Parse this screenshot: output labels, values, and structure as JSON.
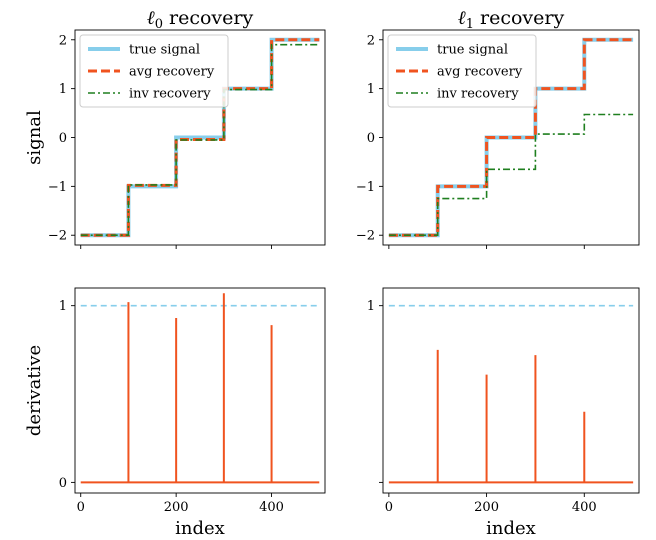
{
  "chart_data": [
    {
      "type": "line",
      "panel": "top-left",
      "title_prefix": "ℓ",
      "title_sub": "0",
      "title_suffix": " recovery",
      "ylabel": "signal",
      "xlabel": "",
      "xlim": [
        -12,
        512
      ],
      "ylim": [
        -2.2,
        2.2
      ],
      "xticks": [
        0,
        200,
        400
      ],
      "xtick_labels_visible": false,
      "yticks": [
        -2,
        -1,
        0,
        1,
        2
      ],
      "ytick_labels": [
        "−2",
        "−1",
        "0",
        "1",
        "2"
      ],
      "legend": "upper-left",
      "series": [
        {
          "name": "true signal",
          "color": "#87ceeb",
          "style": "solid",
          "width": 4,
          "x": [
            0,
            100,
            100,
            200,
            200,
            300,
            300,
            400,
            400,
            500
          ],
          "y": [
            -2,
            -2,
            -1,
            -1,
            0,
            0,
            1,
            1,
            2,
            2
          ]
        },
        {
          "name": "avg recovery",
          "color": "#f0531f",
          "style": "dashed",
          "width": 3,
          "x": [
            0,
            100,
            100,
            200,
            200,
            300,
            300,
            400,
            400,
            500
          ],
          "y": [
            -2,
            -2,
            -0.98,
            -0.98,
            -0.04,
            -0.04,
            1.0,
            1.0,
            2.0,
            2.0
          ]
        },
        {
          "name": "inv recovery",
          "color": "#1f7f1f",
          "style": "dashdot",
          "width": 1.6,
          "x": [
            0,
            100,
            100,
            200,
            200,
            300,
            300,
            400,
            400,
            500
          ],
          "y": [
            -2,
            -2,
            -0.97,
            -0.97,
            -0.05,
            -0.05,
            0.98,
            0.98,
            1.9,
            1.9
          ]
        }
      ]
    },
    {
      "type": "line",
      "panel": "top-right",
      "title_prefix": "ℓ",
      "title_sub": "1",
      "title_suffix": " recovery",
      "ylabel": "",
      "xlabel": "",
      "xlim": [
        -12,
        512
      ],
      "ylim": [
        -2.2,
        2.2
      ],
      "xticks": [
        0,
        200,
        400
      ],
      "xtick_labels_visible": false,
      "yticks": [
        -2,
        -1,
        0,
        1,
        2
      ],
      "ytick_labels": [
        "−2",
        "−1",
        "0",
        "1",
        "2"
      ],
      "legend": "upper-left",
      "series": [
        {
          "name": "true signal",
          "color": "#87ceeb",
          "style": "solid",
          "width": 4,
          "x": [
            0,
            100,
            100,
            200,
            200,
            300,
            300,
            400,
            400,
            500
          ],
          "y": [
            -2,
            -2,
            -1,
            -1,
            0,
            0,
            1,
            1,
            2,
            2
          ]
        },
        {
          "name": "avg recovery",
          "color": "#f0531f",
          "style": "dashed",
          "width": 3,
          "x": [
            0,
            100,
            100,
            200,
            200,
            300,
            300,
            400,
            400,
            500
          ],
          "y": [
            -2,
            -2,
            -1,
            -1,
            0,
            0,
            1,
            1,
            2,
            2
          ]
        },
        {
          "name": "inv recovery",
          "color": "#1f7f1f",
          "style": "dashdot",
          "width": 1.6,
          "x": [
            0,
            100,
            100,
            200,
            200,
            300,
            300,
            400,
            400,
            500
          ],
          "y": [
            -2,
            -2,
            -1.25,
            -1.25,
            -0.65,
            -0.65,
            0.07,
            0.07,
            0.47,
            0.47
          ]
        }
      ]
    },
    {
      "type": "line",
      "panel": "bottom-left",
      "ylabel": "derivative",
      "xlabel": "index",
      "xlim": [
        -12,
        512
      ],
      "ylim": [
        -0.06,
        1.1
      ],
      "xticks": [
        0,
        200,
        400
      ],
      "xtick_labels": [
        "0",
        "200",
        "400"
      ],
      "yticks": [
        0,
        1
      ],
      "ytick_labels": [
        "0",
        "1"
      ],
      "reference_line": {
        "y": 1,
        "color": "#87ceeb",
        "style": "dashed"
      },
      "spike_color": "#f0531f",
      "spikes": [
        {
          "x": 100,
          "y": 1.02
        },
        {
          "x": 200,
          "y": 0.93
        },
        {
          "x": 300,
          "y": 1.07
        },
        {
          "x": 400,
          "y": 0.89
        }
      ],
      "baseline": {
        "x": [
          0,
          500
        ],
        "y": 0
      }
    },
    {
      "type": "line",
      "panel": "bottom-right",
      "ylabel": "",
      "xlabel": "index",
      "xlim": [
        -12,
        512
      ],
      "ylim": [
        -0.06,
        1.1
      ],
      "xticks": [
        0,
        200,
        400
      ],
      "xtick_labels": [
        "0",
        "200",
        "400"
      ],
      "yticks": [
        0,
        1
      ],
      "ytick_labels": [
        "",
        "1"
      ],
      "reference_line": {
        "y": 1,
        "color": "#87ceeb",
        "style": "dashed"
      },
      "spike_color": "#f0531f",
      "spikes": [
        {
          "x": 100,
          "y": 0.75
        },
        {
          "x": 200,
          "y": 0.61
        },
        {
          "x": 300,
          "y": 0.72
        },
        {
          "x": 400,
          "y": 0.4
        }
      ],
      "baseline": {
        "x": [
          0,
          500
        ],
        "y": 0
      }
    }
  ]
}
